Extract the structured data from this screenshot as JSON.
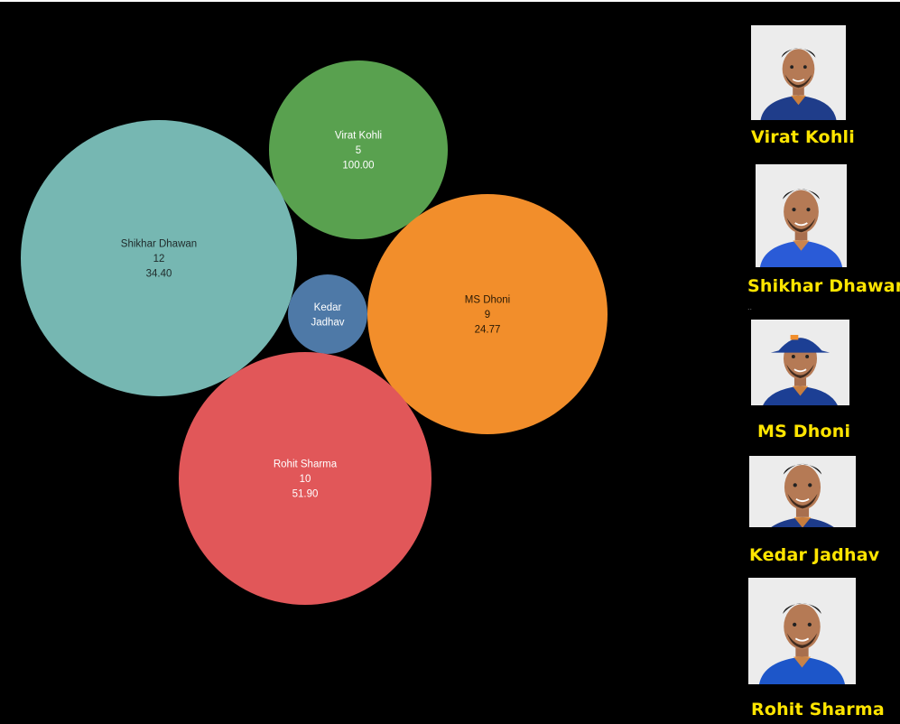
{
  "chart_data": {
    "type": "bubble",
    "bubbles": [
      {
        "name": "Virat Kohli",
        "lines": [
          "Virat Kohli",
          "5",
          "100.00"
        ],
        "count": 5,
        "value": 100.0,
        "color": "#59a14f",
        "text_color": "#ffffff"
      },
      {
        "name": "Shikhar Dhawan",
        "lines": [
          "Shikhar Dhawan",
          "12",
          "34.40"
        ],
        "count": 12,
        "value": 34.4,
        "color": "#76b7b2",
        "text_color": "#1f2a2a"
      },
      {
        "name": "Kedar Jadhav",
        "lines": [
          "Kedar",
          "Jadhav"
        ],
        "count": 1,
        "value": null,
        "color": "#4e79a7",
        "text_color": "#ffffff"
      },
      {
        "name": "MS Dhoni",
        "lines": [
          "MS Dhoni",
          "9",
          "24.77"
        ],
        "count": 9,
        "value": 24.77,
        "color": "#f28e2b",
        "text_color": "#2a1a05"
      },
      {
        "name": "Rohit Sharma",
        "lines": [
          "Rohit Sharma",
          "10",
          "51.90"
        ],
        "count": 10,
        "value": 51.9,
        "color": "#e15759",
        "text_color": "#ffffff"
      }
    ]
  },
  "sidebar": {
    "players": [
      {
        "name": "Virat Kohli",
        "jersey": "#1f3d8a",
        "hair": "#1a1a1a",
        "beard": true,
        "cap": false
      },
      {
        "name": "Shikhar Dhawan",
        "jersey": "#2a5bd7",
        "hair": "#1a1a1a",
        "beard": true,
        "cap": false
      },
      {
        "name": "MS Dhoni",
        "jersey": "#1c3f94",
        "hair": "#1a1a1a",
        "beard": true,
        "cap": true
      },
      {
        "name": "Kedar Jadhav",
        "jersey": "#1d3b8a",
        "hair": "#1a1a1a",
        "beard": true,
        "cap": false
      },
      {
        "name": "Rohit Sharma",
        "jersey": "#1d56c9",
        "hair": "#1a1a1a",
        "beard": true,
        "cap": false
      }
    ],
    "separator": ".."
  }
}
